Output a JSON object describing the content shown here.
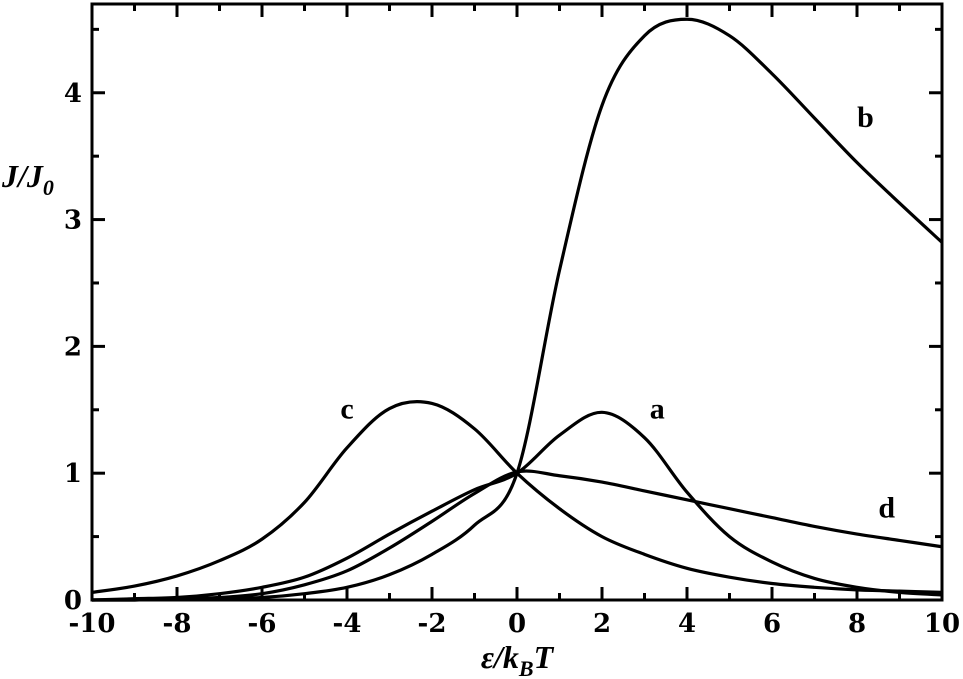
{
  "chart_data": {
    "type": "line",
    "title": "",
    "xlabel_parts": {
      "main": "ε/",
      "k": "k",
      "sub": "B",
      "t": "T"
    },
    "ylabel_parts": {
      "main": "J/J",
      "sub": "0"
    },
    "xlim": [
      -10,
      10
    ],
    "ylim": [
      0,
      4.7
    ],
    "x_ticks": [
      -10,
      -8,
      -6,
      -4,
      -2,
      0,
      2,
      4,
      6,
      8,
      10
    ],
    "x_tick_labels": [
      "-10",
      "-8",
      "-6",
      "-4",
      "-2",
      "0",
      "2",
      "4",
      "6",
      "8",
      "10"
    ],
    "y_ticks": [
      0,
      1,
      2,
      3,
      4
    ],
    "y_tick_labels": [
      "0",
      "1",
      "2",
      "3",
      "4"
    ],
    "grid": false,
    "line_color": "#000000",
    "x": [
      -10,
      -9,
      -8,
      -7,
      -6,
      -5,
      -4,
      -3,
      -2,
      -1,
      0,
      1,
      2,
      3,
      4,
      5,
      6,
      7,
      8,
      9,
      10
    ],
    "series": [
      {
        "name": "a",
        "values": [
          0.0,
          0.01,
          0.02,
          0.05,
          0.1,
          0.18,
          0.33,
          0.52,
          0.7,
          0.87,
          1.0,
          1.3,
          1.48,
          1.28,
          0.85,
          0.5,
          0.3,
          0.17,
          0.1,
          0.06,
          0.04
        ]
      },
      {
        "name": "b",
        "values": [
          0.0,
          0.0,
          0.01,
          0.01,
          0.02,
          0.05,
          0.1,
          0.2,
          0.36,
          0.59,
          1.0,
          2.6,
          3.9,
          4.45,
          4.58,
          4.45,
          4.15,
          3.8,
          3.45,
          3.13,
          2.82
        ]
      },
      {
        "name": "c",
        "values": [
          0.06,
          0.11,
          0.19,
          0.31,
          0.48,
          0.77,
          1.2,
          1.51,
          1.55,
          1.35,
          1.0,
          0.72,
          0.5,
          0.36,
          0.25,
          0.18,
          0.13,
          0.1,
          0.08,
          0.07,
          0.06
        ]
      },
      {
        "name": "d",
        "values": [
          0.0,
          0.0,
          0.01,
          0.02,
          0.05,
          0.12,
          0.23,
          0.41,
          0.62,
          0.84,
          1.01,
          0.98,
          0.93,
          0.86,
          0.79,
          0.72,
          0.65,
          0.58,
          0.52,
          0.47,
          0.42
        ]
      }
    ],
    "labels": [
      {
        "text": "a",
        "x": 3.3,
        "y": 1.43
      },
      {
        "text": "b",
        "x": 8.2,
        "y": 3.73
      },
      {
        "text": "c",
        "x": -4.0,
        "y": 1.43
      },
      {
        "text": "d",
        "x": 8.7,
        "y": 0.65
      }
    ]
  }
}
